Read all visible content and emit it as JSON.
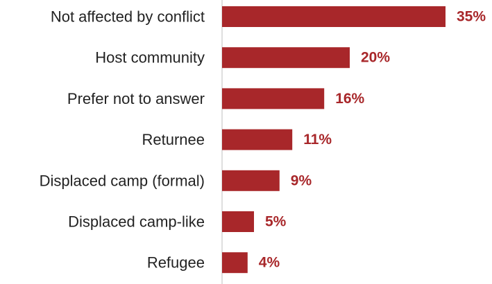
{
  "chart_data": {
    "type": "bar",
    "orientation": "horizontal",
    "categories": [
      "Not affected by conflict",
      "Host community",
      "Prefer not to answer",
      "Returnee",
      "Displaced camp (formal)",
      "Displaced camp-like",
      "Refugee"
    ],
    "values": [
      35,
      20,
      16,
      11,
      9,
      5,
      4
    ],
    "value_labels": [
      "35%",
      "20%",
      "16%",
      "11%",
      "9%",
      "5%",
      "4%"
    ],
    "xlim": [
      0,
      35
    ],
    "grid": false,
    "legend": "none",
    "colors": {
      "bar": "#a8272a",
      "value_label": "#a8272a",
      "category_label": "#222222",
      "axis": "#bdbdbd"
    }
  }
}
